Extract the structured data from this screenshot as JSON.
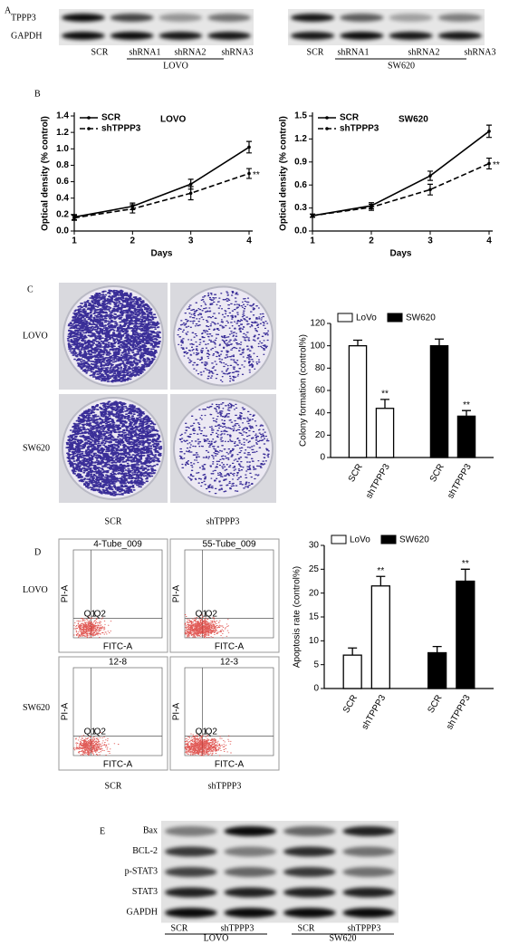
{
  "panel_labels": [
    "A",
    "B",
    "C",
    "D",
    "E"
  ],
  "panel_a": {
    "rows": [
      "TPPP3",
      "GAPDH"
    ],
    "blots": [
      {
        "lanes": [
          "SCR",
          "shRNA1",
          "shRNA2",
          "shRNA3"
        ],
        "group": "LOVO"
      },
      {
        "lanes": [
          "SCR",
          "shRNA1",
          "shRNA2",
          "shRNA3"
        ],
        "group": "SW620"
      }
    ]
  },
  "chart_data": [
    {
      "type": "line",
      "title": "LOVO",
      "x_label": "Days",
      "y_label": "Optical density (% control)",
      "x": [
        1,
        2,
        3,
        4
      ],
      "xlim": [
        1,
        4
      ],
      "xticks": [
        1,
        2,
        3,
        4
      ],
      "ylim": [
        0,
        1.4
      ],
      "yticks": [
        {
          "value": 0,
          "label": "0.0"
        },
        0.2,
        0.4,
        0.6,
        0.8,
        {
          "value": 1,
          "label": "1.0"
        },
        1.2,
        1.4
      ],
      "series": [
        {
          "name": "SCR",
          "color": "#000000",
          "dash": "solid",
          "values": [
            0.17,
            0.3,
            0.57,
            1.02
          ],
          "errors": [
            0.03,
            0.04,
            0.06,
            0.07
          ]
        },
        {
          "name": "shTPPP3",
          "color": "#000000",
          "dash": "dashed",
          "values": [
            0.16,
            0.27,
            0.46,
            0.7
          ],
          "errors": [
            0.03,
            0.05,
            0.08,
            0.06
          ]
        }
      ],
      "annotation": "**",
      "legend": "upper left"
    },
    {
      "type": "line",
      "title": "SW620",
      "x_label": "Days",
      "y_label": "Optical density (% control)",
      "x": [
        1,
        2,
        3,
        4
      ],
      "xlim": [
        1,
        4
      ],
      "xticks": [
        1,
        2,
        3,
        4
      ],
      "ylim": [
        0,
        1.5
      ],
      "yticks": [
        {
          "value": 0,
          "label": "0.0"
        },
        0.3,
        0.6,
        0.9,
        1.2,
        1.5
      ],
      "series": [
        {
          "name": "SCR",
          "color": "#000000",
          "dash": "solid",
          "values": [
            0.2,
            0.33,
            0.72,
            1.3
          ],
          "errors": [
            0.02,
            0.04,
            0.06,
            0.08
          ]
        },
        {
          "name": "shTPPP3",
          "color": "#000000",
          "dash": "dashed",
          "values": [
            0.2,
            0.31,
            0.54,
            0.88
          ],
          "errors": [
            0.02,
            0.04,
            0.07,
            0.07
          ]
        }
      ],
      "annotation": "**",
      "legend": "upper left"
    },
    {
      "type": "bar",
      "y_label": "Colony formation (control%)",
      "categories": [
        "SCR",
        "shTPPP3"
      ],
      "ylim": [
        0,
        120
      ],
      "yticks": [
        0,
        20,
        40,
        60,
        80,
        100,
        120
      ],
      "series": [
        {
          "name": "LoVo",
          "color": "#ffffff",
          "values": [
            100,
            44
          ],
          "errors": [
            5,
            8
          ]
        },
        {
          "name": "SW620",
          "color": "#000000",
          "values": [
            100,
            37
          ],
          "errors": [
            6,
            5
          ]
        }
      ],
      "annotation": "**",
      "legend": "top"
    },
    {
      "type": "bar",
      "y_label": "Apoptosis rate (control%)",
      "categories": [
        "SCR",
        "shTPPP3"
      ],
      "ylim": [
        0,
        30
      ],
      "yticks": [
        0,
        5,
        10,
        15,
        20,
        25,
        30
      ],
      "series": [
        {
          "name": "LoVo",
          "color": "#ffffff",
          "values": [
            7,
            21.5
          ],
          "errors": [
            1.5,
            2
          ]
        },
        {
          "name": "SW620",
          "color": "#000000",
          "values": [
            7.5,
            22.5
          ],
          "errors": [
            1.3,
            2.5
          ]
        }
      ],
      "annotation": "**",
      "legend": "top"
    }
  ],
  "panel_c": {
    "rows": [
      "LOVO",
      "SW620"
    ],
    "columns": [
      "SCR",
      "shTPPP3"
    ]
  },
  "panel_d": {
    "rows": [
      "LOVO",
      "SW620"
    ],
    "columns": [
      "SCR",
      "shTPPP3"
    ],
    "plot_titles": [
      "4-Tube_009",
      "55-Tube_009",
      "12-8",
      "12-3"
    ],
    "gates": [
      "Q1",
      "Q2"
    ],
    "x_axis": "FITC-A",
    "y_axis": "PI-A"
  },
  "panel_e": {
    "rows": [
      "Bax",
      "BCL-2",
      "p-STAT3",
      "STAT3",
      "GAPDH"
    ],
    "lanes": [
      "SCR",
      "shTPPP3",
      "SCR",
      "shTPPP3"
    ],
    "groups": [
      "LOVO",
      "SW620"
    ]
  }
}
